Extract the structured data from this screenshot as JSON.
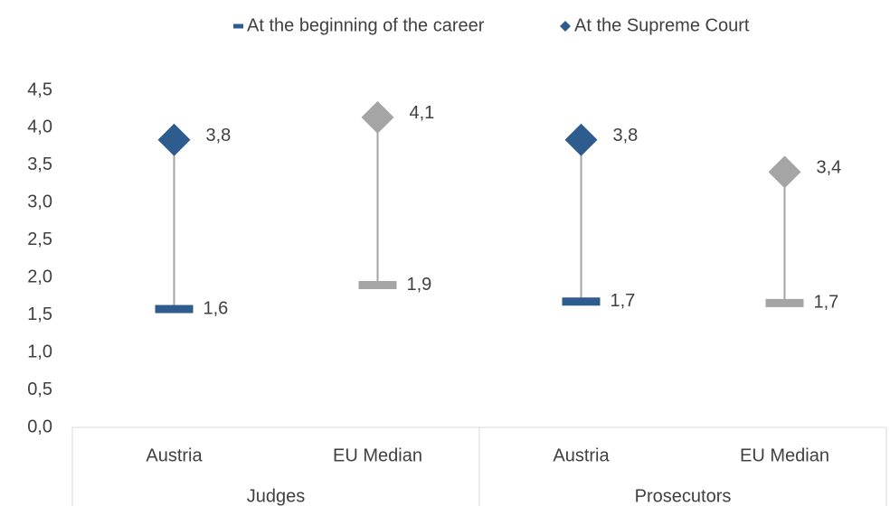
{
  "chart_data": {
    "type": "dumbbell",
    "categories": [
      "Austria",
      "EU Median",
      "Austria",
      "EU Median"
    ],
    "groups": [
      "Judges",
      "Prosecutors"
    ],
    "point_colors": [
      "#2f5c8f",
      "#a5a5a5",
      "#2f5c8f",
      "#a5a5a5"
    ],
    "connector_color": "#a5a5a5",
    "series": [
      {
        "name": "At the beginning of the career",
        "marker": "dash",
        "color": "#2f5c8f",
        "values": [
          1.58,
          1.9,
          1.68,
          1.66
        ],
        "value_labels": [
          "1,6",
          "1,9",
          "1,7",
          "1,7"
        ]
      },
      {
        "name": "At the Supreme Court",
        "marker": "diamond",
        "color": "#2f5c8f",
        "values": [
          3.84,
          4.14,
          3.84,
          3.41
        ],
        "value_labels": [
          "3,8",
          "4,1",
          "3,8",
          "3,4"
        ]
      }
    ],
    "ylim": [
      0,
      4.5
    ],
    "yticks": [
      {
        "value": 0,
        "label": "0,0"
      },
      {
        "value": 0.5,
        "label": "0,5"
      },
      {
        "value": 1,
        "label": "1,0"
      },
      {
        "value": 1.5,
        "label": "1,5"
      },
      {
        "value": 2,
        "label": "2,0"
      },
      {
        "value": 2.5,
        "label": "2,5"
      },
      {
        "value": 3,
        "label": "3,0"
      },
      {
        "value": 3.5,
        "label": "3,5"
      },
      {
        "value": 4,
        "label": "4,0"
      },
      {
        "value": 4.5,
        "label": "4,5"
      }
    ],
    "legend": "top"
  }
}
